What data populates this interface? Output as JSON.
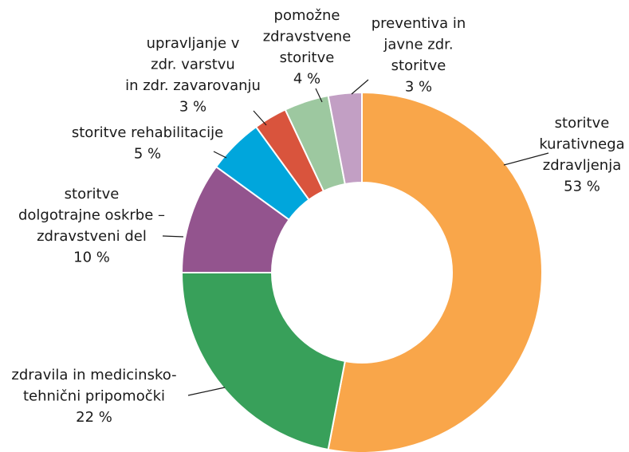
{
  "chart_data": {
    "type": "donut",
    "categories": [
      [
        "storitve",
        "kurativnega",
        "zdravljenja"
      ],
      [
        "zdravila in medicinsko-",
        "tehnični pripomočki"
      ],
      [
        "storitve",
        "dolgotrajne oskrbe –",
        "zdravstveni del"
      ],
      [
        "storitve rehabilitacije"
      ],
      [
        "upravljanje v",
        "zdr. varstvu",
        "in zdr. zavarovanju"
      ],
      [
        "pomožne",
        "zdravstvene",
        "storitve"
      ],
      [
        "preventiva in",
        "javne zdr.",
        "storitve"
      ]
    ],
    "values": [
      53,
      22,
      10,
      5,
      3,
      4,
      3
    ],
    "value_labels": [
      "53 %",
      "22 %",
      "10 %",
      "5 %",
      "3 %",
      "4 %",
      "3 %"
    ],
    "colors": [
      "#f9a64a",
      "#38a05a",
      "#93548e",
      "#00a6dc",
      "#d9543d",
      "#9dc8a0",
      "#c29fc4"
    ]
  }
}
